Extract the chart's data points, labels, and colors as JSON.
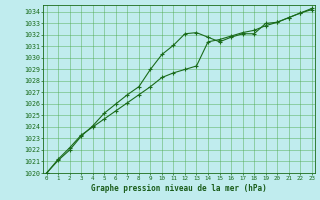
{
  "title": "Graphe pression niveau de la mer (hPa)",
  "x_labels": [
    0,
    1,
    2,
    3,
    4,
    5,
    6,
    7,
    8,
    9,
    10,
    11,
    12,
    13,
    14,
    15,
    16,
    17,
    18,
    19,
    20,
    21,
    22,
    23
  ],
  "ylim_min": 1020,
  "ylim_max": 1034.6,
  "yticks": [
    1020,
    1021,
    1022,
    1023,
    1024,
    1025,
    1026,
    1027,
    1028,
    1029,
    1030,
    1031,
    1032,
    1033,
    1034
  ],
  "line1": [
    1020.0,
    1021.1,
    1022.0,
    1023.2,
    1024.1,
    1025.2,
    1026.0,
    1026.8,
    1027.5,
    1029.0,
    1030.3,
    1031.1,
    1032.1,
    1032.2,
    1031.8,
    1031.4,
    1031.8,
    1032.1,
    1032.1,
    1033.0,
    1033.1,
    1033.5,
    1033.9,
    1034.2
  ],
  "line2": [
    1020.0,
    1021.2,
    1022.2,
    1023.3,
    1024.0,
    1024.7,
    1025.4,
    1026.1,
    1026.8,
    1027.5,
    1028.3,
    1028.7,
    1029.0,
    1029.3,
    1031.4,
    1031.6,
    1031.9,
    1032.2,
    1032.4,
    1032.8,
    1033.1,
    1033.5,
    1033.9,
    1034.3
  ],
  "line_color": "#1a6b1a",
  "bg_color": "#c0ecee",
  "grid_color": "#4daa4d",
  "title_color": "#1a5c1a"
}
